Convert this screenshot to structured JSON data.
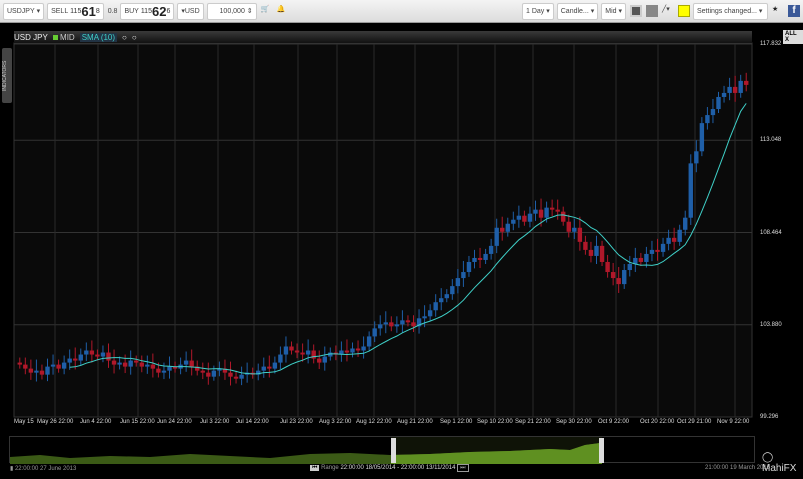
{
  "toolbar": {
    "symbol": "USDJPY",
    "sell_label": "SELL",
    "sell_big_prefix": "115",
    "sell_big": "61",
    "sell_pip": "8",
    "spread": "0.8",
    "buy_label": "BUY",
    "buy_big_prefix": "115",
    "buy_big": "62",
    "buy_pip": "6",
    "currency": "USD",
    "amount": "100,000",
    "timeframe": "1 Day",
    "chart_type": "Candle...",
    "price_type": "Mid",
    "settings": "Settings changed..."
  },
  "legend": {
    "instrument": "USD JPY",
    "mid": "MID",
    "sma": "SMA (10)"
  },
  "side_tab": "INDICATORS",
  "all_button": "ALL X",
  "colors": {
    "up": "#1f5fa8",
    "down": "#b0182a",
    "sma": "#3fd0c8",
    "nav_fill": "#5c8f1e"
  },
  "chart_data": {
    "type": "candlestick",
    "title": "USD JPY",
    "ylim": [
      99.296,
      117.832
    ],
    "yticks": [
      "117.832",
      "113.048",
      "108.464",
      "103.880",
      "99.296"
    ],
    "xticks": [
      "May 15",
      "May 26 22:00",
      "Jun 4 22:00",
      "Jun 15 22:00",
      "Jun 24 22:00",
      "Jul 3 22:00",
      "Jul 14 22:00",
      "Jul 23 22:00",
      "Aug 3 22:00",
      "Aug 12 22:00",
      "Aug 21 22:00",
      "Sep 1 22:00",
      "Sep 10 22:00",
      "Sep 21 22:00",
      "Sep 30 22:00",
      "Oct 9 22:00",
      "Oct 20 22:00",
      "Oct 29 21:00",
      "Nov 9 22:00"
    ],
    "closes": [
      101.9,
      101.7,
      101.5,
      101.6,
      101.4,
      101.8,
      101.9,
      101.7,
      102.0,
      102.2,
      102.1,
      102.4,
      102.6,
      102.4,
      102.3,
      102.5,
      102.1,
      101.9,
      102.0,
      101.8,
      102.1,
      102.0,
      101.8,
      101.9,
      101.7,
      101.5,
      101.6,
      101.8,
      101.7,
      101.9,
      102.1,
      101.8,
      101.6,
      101.5,
      101.3,
      101.6,
      101.7,
      101.5,
      101.3,
      101.2,
      101.4,
      101.5,
      101.4,
      101.6,
      101.8,
      101.7,
      102.0,
      102.4,
      102.8,
      102.6,
      102.5,
      102.4,
      102.6,
      102.2,
      102.0,
      102.3,
      102.5,
      102.4,
      102.6,
      102.5,
      102.7,
      102.6,
      102.8,
      103.3,
      103.7,
      103.9,
      104.0,
      103.8,
      103.9,
      104.1,
      104.0,
      103.8,
      104.2,
      104.3,
      104.6,
      105.0,
      105.2,
      105.4,
      105.8,
      106.2,
      106.5,
      107.0,
      107.2,
      107.1,
      107.4,
      107.8,
      108.7,
      108.5,
      108.9,
      109.1,
      109.3,
      109.0,
      109.4,
      109.6,
      109.2,
      109.7,
      109.6,
      109.5,
      109.0,
      108.5,
      108.7,
      108.0,
      107.6,
      107.3,
      107.8,
      107.0,
      106.5,
      106.2,
      105.9,
      106.6,
      106.9,
      107.2,
      107.0,
      107.4,
      107.6,
      107.5,
      107.9,
      108.2,
      108.0,
      108.6,
      109.2,
      111.9,
      112.5,
      113.9,
      114.3,
      114.6,
      115.2,
      115.4,
      115.7,
      115.4,
      116.0,
      115.8
    ],
    "indicator": "SMA (10)"
  },
  "navigator": {
    "start": "22:00:00 27 June 2013",
    "range_label": "Range",
    "range": "22:00:00 18/05/2014 - 22:00:00 13/11/2014",
    "end": "21:00:00 19 March 2015"
  },
  "brand": "MahiFX"
}
